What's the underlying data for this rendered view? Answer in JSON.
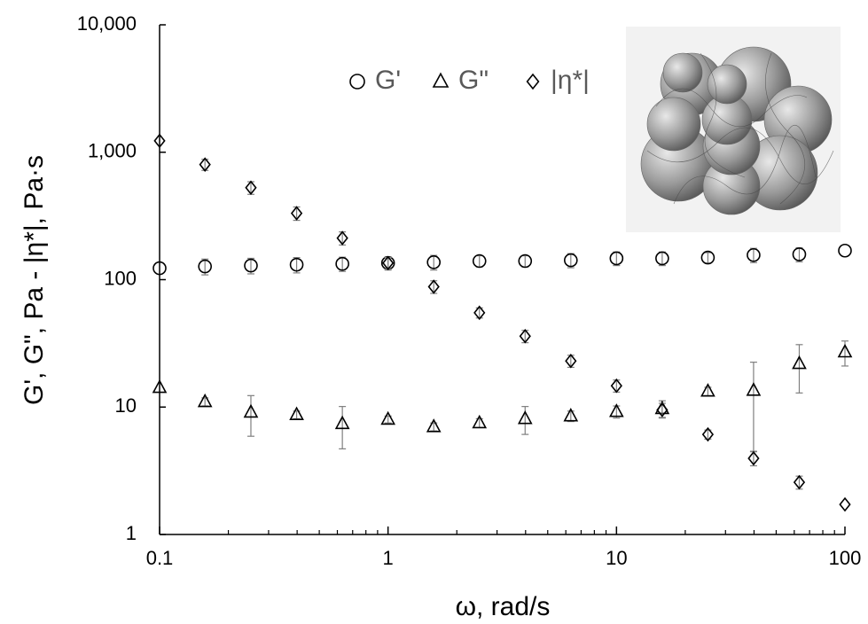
{
  "chart_data": {
    "type": "scatter",
    "xlabel": "ω, rad/s",
    "ylabel": "G', G\", Pa - |η*|, Pa·s",
    "xscale": "log",
    "yscale": "log",
    "xlim": [
      0.1,
      100
    ],
    "ylim": [
      1,
      10000
    ],
    "xticks": [
      0.1,
      1,
      10,
      100
    ],
    "xminorticks": [
      0.2,
      0.3,
      0.4,
      0.5,
      0.6,
      0.7,
      0.8,
      0.9,
      2,
      3,
      4,
      5,
      6,
      7,
      8,
      9,
      20,
      30,
      40,
      50,
      60,
      70,
      80,
      90
    ],
    "yticks": [
      1,
      10,
      100,
      {
        "value": 1000,
        "label": "1,000"
      },
      {
        "value": 10000,
        "label": "10,000"
      }
    ],
    "legend": "top",
    "error_color": "#7f7f7f",
    "series": [
      {
        "name": "G'",
        "marker": "circle",
        "color": "#000000",
        "x": [
          0.1,
          0.158,
          0.251,
          0.398,
          0.631,
          1,
          1.585,
          2.512,
          3.981,
          6.31,
          10,
          15.85,
          25.12,
          39.81,
          63.1,
          100
        ],
        "values": [
          123,
          127,
          129,
          131,
          133,
          135,
          137,
          140,
          140,
          142,
          147,
          147,
          149,
          156,
          158,
          169
        ],
        "errors": [
          null,
          18,
          18,
          18,
          17,
          16,
          18,
          14,
          14,
          18,
          18,
          18,
          14,
          20,
          20,
          null
        ]
      },
      {
        "name": "G\"",
        "marker": "triangle",
        "color": "#000000",
        "x": [
          0.1,
          0.158,
          0.251,
          0.398,
          0.631,
          1,
          1.585,
          2.512,
          3.981,
          6.31,
          10,
          15.85,
          25.12,
          39.81,
          63.1,
          100
        ],
        "values": [
          14.2,
          11.0,
          9.1,
          8.7,
          7.4,
          8.0,
          7.0,
          7.5,
          8.1,
          8.5,
          9.2,
          9.7,
          13.3,
          13.5,
          21.9,
          27
        ],
        "errors": [
          null,
          0.8,
          3.2,
          0.6,
          2.7,
          0.5,
          0.5,
          0.6,
          2.0,
          0.8,
          1.0,
          1.5,
          1.0,
          9.0,
          9.0,
          6.0
        ]
      },
      {
        "name": "|η*|",
        "marker": "diamond",
        "color": "#000000",
        "x": [
          0.1,
          0.158,
          0.251,
          0.398,
          0.631,
          1,
          1.585,
          2.512,
          3.981,
          6.31,
          10,
          15.85,
          25.12,
          39.81,
          63.1,
          100
        ],
        "values": [
          1230,
          800,
          527,
          332,
          212,
          135,
          88,
          55,
          36,
          23,
          14.7,
          9.5,
          6.1,
          3.96,
          2.57,
          1.72
        ],
        "errors": [
          null,
          80,
          60,
          40,
          25,
          14,
          10,
          5,
          4,
          2.5,
          1.6,
          1.2,
          0.5,
          0.5,
          0.3,
          null
        ]
      }
    ]
  }
}
